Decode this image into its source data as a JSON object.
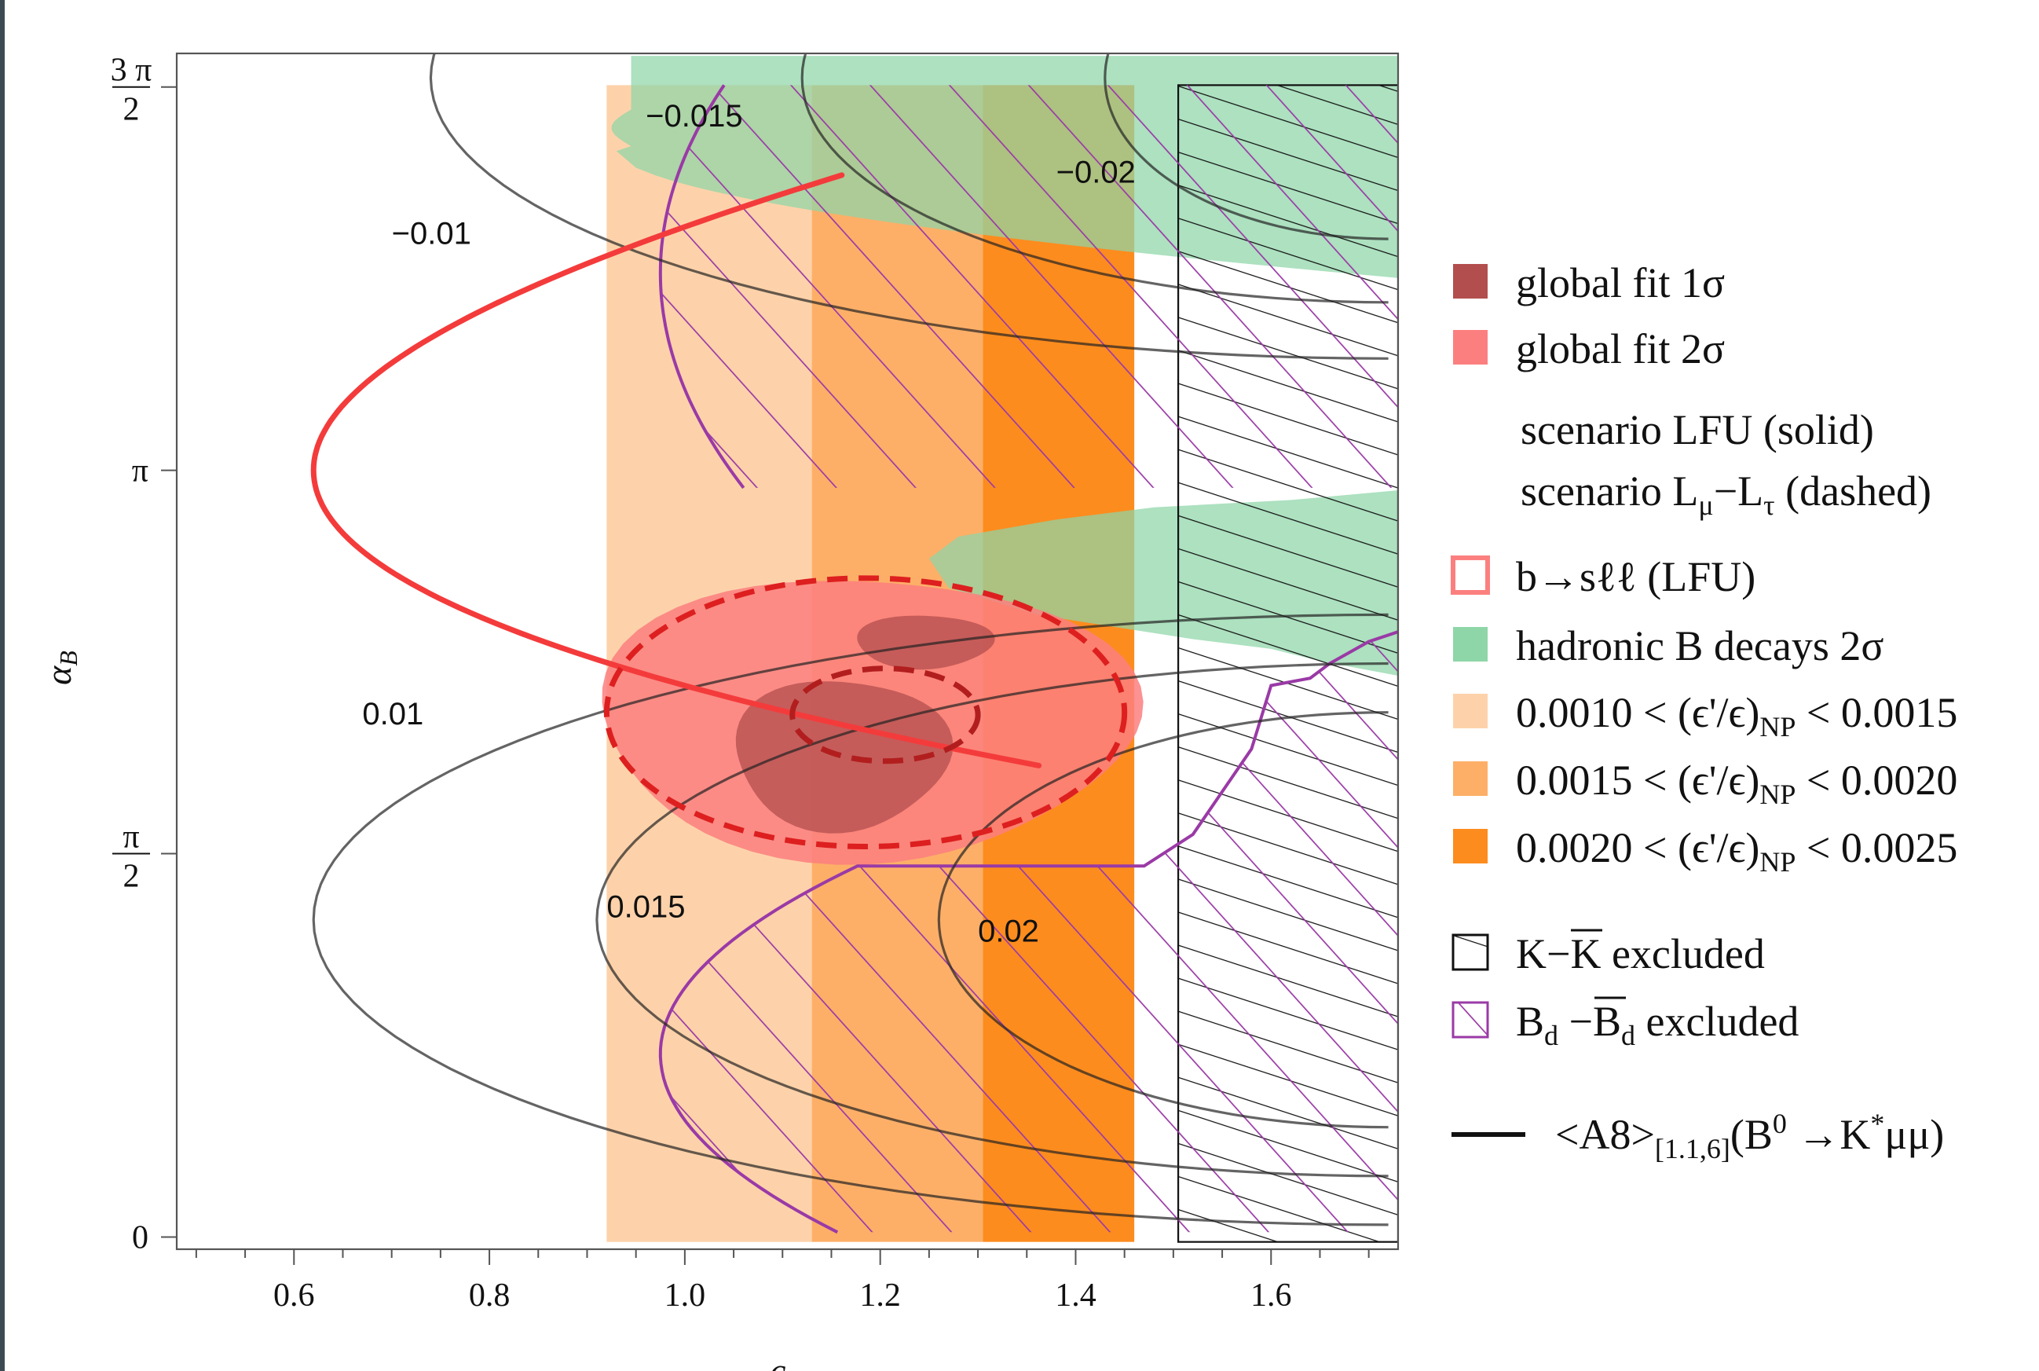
{
  "chart_data": {
    "type": "contour",
    "xlabel": "c_B",
    "ylabel": "α_B",
    "xlim": [
      0.48,
      1.73
    ],
    "ylim": [
      -0.05,
      4.85
    ],
    "x_ticks": [
      {
        "value": 0.6,
        "label": "0.6"
      },
      {
        "value": 0.8,
        "label": "0.8"
      },
      {
        "value": 1.0,
        "label": "1.0"
      },
      {
        "value": 1.2,
        "label": "1.2"
      },
      {
        "value": 1.4,
        "label": "1.4"
      },
      {
        "value": 1.6,
        "label": "1.6"
      }
    ],
    "y_ticks": [
      {
        "value": 0,
        "num": "0",
        "den": ""
      },
      {
        "value": 1.5708,
        "num": "π",
        "den": "2"
      },
      {
        "value": 3.1416,
        "num": "π",
        "den": ""
      },
      {
        "value": 4.7124,
        "num": "3 π",
        "den": "2"
      }
    ],
    "contour_levels": [
      {
        "label": "-0.015",
        "x": 0.96,
        "y": 4.55
      },
      {
        "label": "-0.02",
        "x": 1.38,
        "y": 4.32
      },
      {
        "label": "-0.01",
        "x": 0.7,
        "y": 4.07
      },
      {
        "label": "0.01",
        "x": 0.67,
        "y": 2.1
      },
      {
        "label": "0.015",
        "x": 0.92,
        "y": 1.31
      },
      {
        "label": "0.02",
        "x": 1.3,
        "y": 1.21
      }
    ],
    "epsilon_bands": [
      {
        "from": 0.92,
        "to": 1.13,
        "color": "#fdd2aa"
      },
      {
        "from": 1.13,
        "to": 1.305,
        "color": "#fdaf68"
      },
      {
        "from": 1.305,
        "to": 1.46,
        "color": "#fd8c1e"
      }
    ],
    "kk_excluded_from": 1.505,
    "best_fit_LFU_solid": {
      "a": 0.6225,
      "b": 0.97,
      "alpha0": 3.1416,
      "tipc": 0.62
    },
    "best_fit_LmuLtau_dashed": {
      "a": 1.465,
      "b": 0.1,
      "alpha0": 2.26
    },
    "colors": {
      "global_fit_1sigma": "#b34e4e",
      "global_fit_2sigma": "#fc7f7f",
      "hadronic_b": "#8ed6a8",
      "bd_excluded": "#9a3aa6",
      "kk_excluded": "#111111",
      "a8_contour": "#222222",
      "lfu_line": "#f43b3b"
    }
  },
  "legend": {
    "items": [
      {
        "label": "global fit 1σ"
      },
      {
        "label": "global fit 2σ"
      },
      {
        "label": "scenario LFU (solid)"
      },
      {
        "label_pre": "scenario L",
        "sub1": "μ",
        "mid": "−L",
        "sub2": "τ",
        "post": " (dashed)"
      },
      {
        "label": "b→sℓℓ (LFU)"
      },
      {
        "label": "hadronic B decays 2σ"
      },
      {
        "pre": "0.0010 < (ϵ'/ϵ)",
        "sub": "NP",
        "post": " < 0.0015"
      },
      {
        "pre": "0.0015 < (ϵ'/ϵ)",
        "sub": "NP",
        "post": " < 0.0020"
      },
      {
        "pre": "0.0020 < (ϵ'/ϵ)",
        "sub": "NP",
        "post": " < 0.0025"
      },
      {
        "label": "K−K excluded",
        "overline_start": 2,
        "overline_end": 3
      },
      {
        "pre": "B",
        "sub1": "d",
        "mid": " −B",
        "sub2": "d",
        "post": " excluded"
      },
      {
        "pre": "<A8>",
        "sub": "[1.1,6]",
        "post": "(B",
        "sup": "0",
        "post2": " →K",
        "sup2": "*",
        "post3": "μμ)"
      }
    ]
  }
}
